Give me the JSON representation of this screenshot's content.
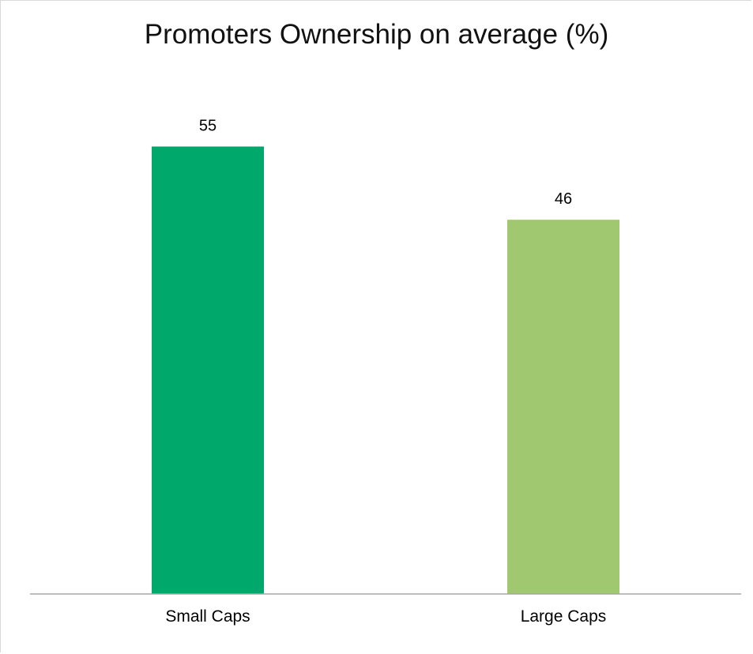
{
  "chart_data": {
    "type": "bar",
    "title": "Promoters Ownership on average (%)",
    "categories": [
      "Small Caps",
      "Large Caps"
    ],
    "values": [
      55,
      46
    ],
    "colors": [
      "#00a86b",
      "#a0c870"
    ],
    "data_labels": [
      "55",
      "46"
    ],
    "xlabel": "",
    "ylabel": "",
    "ylim": [
      0,
      60
    ],
    "grid": false,
    "legend": "none"
  }
}
